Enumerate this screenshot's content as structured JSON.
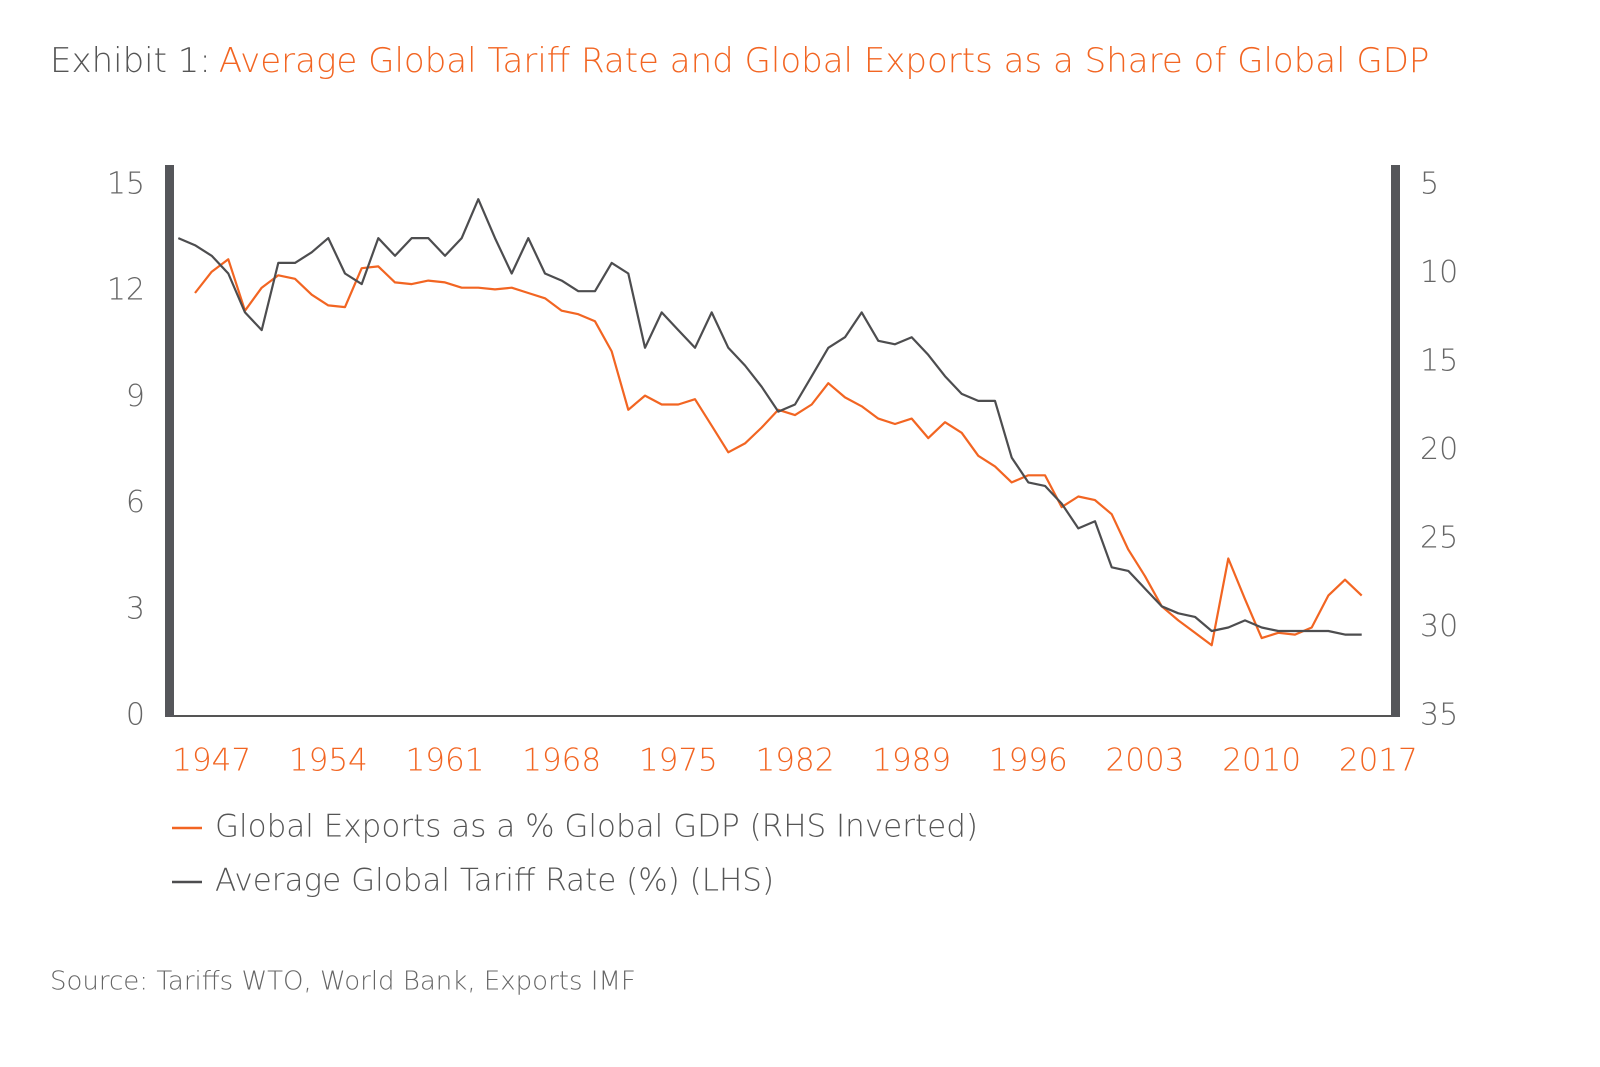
{
  "chart_data": {
    "type": "line",
    "title_label": "Exhibit 1:",
    "title": "Average Global Tariff Rate and Global Exports as a Share of Global GDP",
    "source": "Source: Tariffs WTO, World Bank, Exports IMF",
    "xlim": [
      1944.5,
      2018
    ],
    "xticks": [
      1947,
      1954,
      1961,
      1968,
      1975,
      1982,
      1989,
      1996,
      2003,
      2010,
      2017
    ],
    "ylim": [
      0,
      15
    ],
    "yticks": [
      0,
      3,
      6,
      9,
      12,
      15
    ],
    "y2lim": [
      5,
      35
    ],
    "y2ticks": [
      5,
      10,
      15,
      20,
      25,
      30,
      35
    ],
    "y2_inverted": true,
    "series": [
      {
        "name": "Global Exports as a % Global GDP (RHS Inverted)",
        "color": "#f26522",
        "axis": "y2",
        "x": [
          1946,
          1947,
          1948,
          1949,
          1950,
          1951,
          1952,
          1953,
          1954,
          1955,
          1956,
          1957,
          1958,
          1959,
          1960,
          1961,
          1962,
          1963,
          1964,
          1965,
          1966,
          1967,
          1968,
          1969,
          1970,
          1971,
          1972,
          1973,
          1974,
          1975,
          1976,
          1977,
          1978,
          1979,
          1980,
          1981,
          1982,
          1983,
          1984,
          1985,
          1986,
          1987,
          1988,
          1989,
          1990,
          1991,
          1992,
          1993,
          1994,
          1995,
          1996,
          1997,
          1998,
          1999,
          2000,
          2001,
          2002,
          2003,
          2004,
          2005,
          2006,
          2007,
          2008,
          2009,
          2010,
          2011,
          2012,
          2013,
          2014,
          2015,
          2016
        ],
        "values": [
          11.1,
          9.9,
          9.2,
          12.1,
          10.8,
          10.1,
          10.3,
          11.2,
          11.8,
          11.9,
          9.7,
          9.6,
          10.5,
          10.6,
          10.4,
          10.5,
          10.8,
          10.8,
          10.9,
          10.8,
          11.1,
          11.4,
          12.1,
          12.3,
          12.7,
          14.4,
          17.7,
          16.9,
          17.4,
          17.4,
          17.1,
          18.6,
          20.1,
          19.6,
          18.7,
          17.7,
          18.0,
          17.4,
          16.2,
          17.0,
          17.5,
          18.2,
          18.5,
          18.2,
          19.3,
          18.4,
          19.0,
          20.3,
          20.9,
          21.8,
          21.4,
          21.4,
          23.2,
          22.6,
          22.8,
          23.6,
          25.6,
          27.1,
          28.8,
          29.6,
          30.3,
          31.0,
          26.1,
          28.4,
          30.6,
          30.3,
          30.4,
          30.0,
          28.2,
          27.3,
          28.2
        ]
      },
      {
        "name": "Average Global Tariff Rate (%) (LHS)",
        "color": "#4d4d4f",
        "axis": "y",
        "x": [
          1945,
          1946,
          1947,
          1948,
          1949,
          1950,
          1951,
          1952,
          1953,
          1954,
          1955,
          1956,
          1957,
          1958,
          1959,
          1960,
          1961,
          1962,
          1963,
          1964,
          1965,
          1966,
          1967,
          1968,
          1969,
          1970,
          1971,
          1972,
          1973,
          1974,
          1975,
          1976,
          1977,
          1978,
          1979,
          1980,
          1981,
          1982,
          1983,
          1984,
          1985,
          1986,
          1987,
          1988,
          1989,
          1990,
          1991,
          1992,
          1993,
          1994,
          1995,
          1996,
          1997,
          1998,
          1999,
          2000,
          2001,
          2002,
          2003,
          2004,
          2005,
          2006,
          2007,
          2008,
          2009,
          2010,
          2011,
          2012,
          2013,
          2014,
          2015,
          2016
        ],
        "values": [
          13.5,
          13.3,
          13.0,
          12.5,
          11.4,
          10.9,
          12.8,
          12.8,
          13.1,
          13.5,
          12.5,
          12.2,
          13.5,
          13.0,
          13.5,
          13.5,
          13.0,
          13.5,
          14.6,
          13.5,
          12.5,
          13.5,
          12.5,
          12.3,
          12.0,
          12.0,
          12.8,
          12.5,
          10.4,
          11.4,
          10.9,
          10.4,
          11.4,
          10.4,
          9.9,
          9.3,
          8.6,
          8.8,
          9.6,
          10.4,
          10.7,
          11.4,
          10.6,
          10.5,
          10.7,
          10.2,
          9.6,
          9.1,
          8.9,
          8.9,
          7.3,
          6.6,
          6.5,
          6.0,
          5.3,
          5.5,
          4.2,
          4.1,
          3.6,
          3.1,
          2.9,
          2.8,
          2.4,
          2.5,
          2.7,
          2.5,
          2.4,
          2.4,
          2.4,
          2.4,
          2.3,
          2.3
        ]
      }
    ]
  }
}
